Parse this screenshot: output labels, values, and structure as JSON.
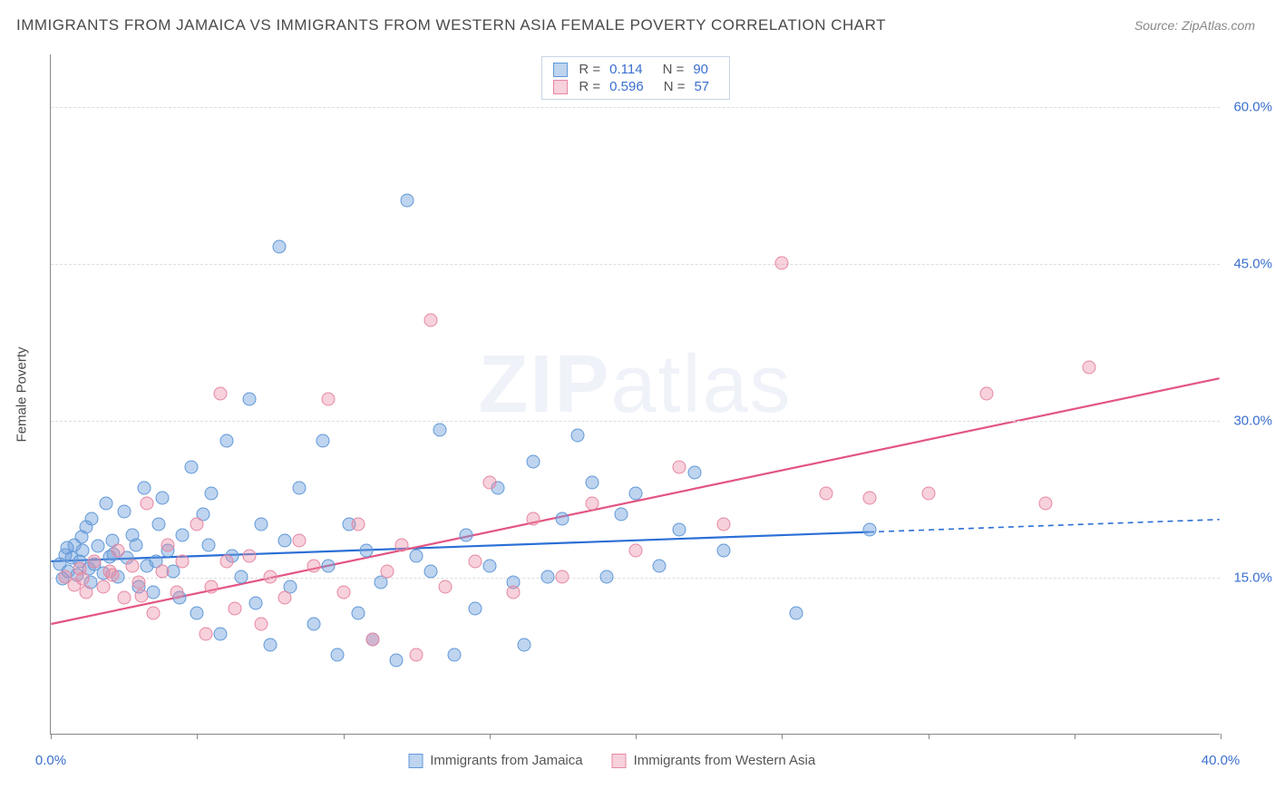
{
  "title": "IMMIGRANTS FROM JAMAICA VS IMMIGRANTS FROM WESTERN ASIA FEMALE POVERTY CORRELATION CHART",
  "source_label": "Source: ZipAtlas.com",
  "watermark_bold": "ZIP",
  "watermark_rest": "atlas",
  "y_axis_label": "Female Poverty",
  "chart": {
    "type": "scatter",
    "background_color": "#ffffff",
    "grid_color": "#dddddd",
    "axis_color": "#888888",
    "xlim": [
      0,
      40
    ],
    "ylim": [
      0,
      65
    ],
    "x_ticks": [
      0,
      5,
      10,
      15,
      20,
      25,
      30,
      35,
      40
    ],
    "x_tick_labels": {
      "0": "0.0%",
      "40": "40.0%"
    },
    "y_ticks": [
      15,
      30,
      45,
      60
    ],
    "y_tick_labels": {
      "15": "15.0%",
      "30": "30.0%",
      "45": "45.0%",
      "60": "60.0%"
    },
    "point_radius": 7.5,
    "title_fontsize": 17,
    "label_fontsize": 15,
    "tick_label_color": "#3a6fcf",
    "series": [
      {
        "name": "Immigrants from Jamaica",
        "fill_color": "rgba(110,160,220,0.45)",
        "stroke_color": "#6098d8",
        "trend_color": "#2b6fd6",
        "R": "0.114",
        "N": "90",
        "trend": {
          "x1": 0,
          "y1": 16.5,
          "x2": 28,
          "y2": 19.3,
          "extend_to": 40,
          "extend_y": 20.5
        },
        "points": [
          [
            0.3,
            16.2
          ],
          [
            0.5,
            17.1
          ],
          [
            0.6,
            15.5
          ],
          [
            0.7,
            16.8
          ],
          [
            0.8,
            18.0
          ],
          [
            0.9,
            15.2
          ],
          [
            1.0,
            16.5
          ],
          [
            1.1,
            17.5
          ],
          [
            1.2,
            19.8
          ],
          [
            1.3,
            15.8
          ],
          [
            1.4,
            20.5
          ],
          [
            1.5,
            16.2
          ],
          [
            1.6,
            17.9
          ],
          [
            1.8,
            15.3
          ],
          [
            1.9,
            22.0
          ],
          [
            2.0,
            16.9
          ],
          [
            2.1,
            18.5
          ],
          [
            2.3,
            15.0
          ],
          [
            2.5,
            21.2
          ],
          [
            2.6,
            16.8
          ],
          [
            2.8,
            19.0
          ],
          [
            3.0,
            14.0
          ],
          [
            3.2,
            23.5
          ],
          [
            3.3,
            16.0
          ],
          [
            3.5,
            13.5
          ],
          [
            3.7,
            20.0
          ],
          [
            3.8,
            22.5
          ],
          [
            4.0,
            17.5
          ],
          [
            4.2,
            15.5
          ],
          [
            4.5,
            19.0
          ],
          [
            4.8,
            25.5
          ],
          [
            5.0,
            11.5
          ],
          [
            5.2,
            21.0
          ],
          [
            5.5,
            23.0
          ],
          [
            5.8,
            9.5
          ],
          [
            6.0,
            28.0
          ],
          [
            6.2,
            17.0
          ],
          [
            6.5,
            15.0
          ],
          [
            6.8,
            32.0
          ],
          [
            7.0,
            12.5
          ],
          [
            7.2,
            20.0
          ],
          [
            7.5,
            8.5
          ],
          [
            7.8,
            46.5
          ],
          [
            8.0,
            18.5
          ],
          [
            8.2,
            14.0
          ],
          [
            8.5,
            23.5
          ],
          [
            9.0,
            10.5
          ],
          [
            9.3,
            28.0
          ],
          [
            9.5,
            16.0
          ],
          [
            9.8,
            7.5
          ],
          [
            10.2,
            20.0
          ],
          [
            10.5,
            11.5
          ],
          [
            10.8,
            17.5
          ],
          [
            11.0,
            9.0
          ],
          [
            11.3,
            14.5
          ],
          [
            11.8,
            7.0
          ],
          [
            12.2,
            51.0
          ],
          [
            12.5,
            17.0
          ],
          [
            13.0,
            15.5
          ],
          [
            13.3,
            29.0
          ],
          [
            13.8,
            7.5
          ],
          [
            14.2,
            19.0
          ],
          [
            14.5,
            12.0
          ],
          [
            15.0,
            16.0
          ],
          [
            15.3,
            23.5
          ],
          [
            15.8,
            14.5
          ],
          [
            16.2,
            8.5
          ],
          [
            16.5,
            26.0
          ],
          [
            17.0,
            15.0
          ],
          [
            17.5,
            20.5
          ],
          [
            18.0,
            28.5
          ],
          [
            18.5,
            24.0
          ],
          [
            19.0,
            15.0
          ],
          [
            19.5,
            21.0
          ],
          [
            20.0,
            23.0
          ],
          [
            20.8,
            16.0
          ],
          [
            21.5,
            19.5
          ],
          [
            22.0,
            25.0
          ],
          [
            23.0,
            17.5
          ],
          [
            25.5,
            11.5
          ],
          [
            28.0,
            19.5
          ],
          [
            0.4,
            14.8
          ],
          [
            0.55,
            17.8
          ],
          [
            1.05,
            18.8
          ],
          [
            1.35,
            14.5
          ],
          [
            2.15,
            17.2
          ],
          [
            2.9,
            18.0
          ],
          [
            3.6,
            16.5
          ],
          [
            4.4,
            13.0
          ],
          [
            5.4,
            18.0
          ]
        ]
      },
      {
        "name": "Immigrants from Western Asia",
        "fill_color": "rgba(235,140,165,0.40)",
        "stroke_color": "#e687a2",
        "trend_color": "#e35582",
        "R": "0.596",
        "N": "57",
        "trend": {
          "x1": 0,
          "y1": 10.5,
          "x2": 40,
          "y2": 34.0
        },
        "points": [
          [
            0.5,
            15.0
          ],
          [
            0.8,
            14.2
          ],
          [
            1.0,
            15.8
          ],
          [
            1.2,
            13.5
          ],
          [
            1.5,
            16.5
          ],
          [
            1.8,
            14.0
          ],
          [
            2.0,
            15.5
          ],
          [
            2.3,
            17.5
          ],
          [
            2.5,
            13.0
          ],
          [
            2.8,
            16.0
          ],
          [
            3.0,
            14.5
          ],
          [
            3.3,
            22.0
          ],
          [
            3.5,
            11.5
          ],
          [
            3.8,
            15.5
          ],
          [
            4.0,
            18.0
          ],
          [
            4.3,
            13.5
          ],
          [
            4.5,
            16.5
          ],
          [
            5.0,
            20.0
          ],
          [
            5.3,
            9.5
          ],
          [
            5.5,
            14.0
          ],
          [
            5.8,
            32.5
          ],
          [
            6.0,
            16.5
          ],
          [
            6.3,
            12.0
          ],
          [
            6.8,
            17.0
          ],
          [
            7.2,
            10.5
          ],
          [
            7.5,
            15.0
          ],
          [
            8.0,
            13.0
          ],
          [
            8.5,
            18.5
          ],
          [
            9.0,
            16.0
          ],
          [
            9.5,
            32.0
          ],
          [
            10.0,
            13.5
          ],
          [
            10.5,
            20.0
          ],
          [
            11.0,
            9.0
          ],
          [
            11.5,
            15.5
          ],
          [
            12.0,
            18.0
          ],
          [
            12.5,
            7.5
          ],
          [
            13.0,
            39.5
          ],
          [
            13.5,
            14.0
          ],
          [
            14.5,
            16.5
          ],
          [
            15.0,
            24.0
          ],
          [
            15.8,
            13.5
          ],
          [
            16.5,
            20.5
          ],
          [
            17.5,
            15.0
          ],
          [
            18.5,
            22.0
          ],
          [
            20.0,
            17.5
          ],
          [
            21.5,
            25.5
          ],
          [
            23.0,
            20.0
          ],
          [
            25.0,
            45.0
          ],
          [
            26.5,
            23.0
          ],
          [
            28.0,
            22.5
          ],
          [
            30.0,
            23.0
          ],
          [
            32.0,
            32.5
          ],
          [
            34.0,
            22.0
          ],
          [
            35.5,
            35.0
          ],
          [
            1.1,
            14.8
          ],
          [
            2.1,
            15.2
          ],
          [
            3.1,
            13.2
          ]
        ]
      }
    ]
  }
}
